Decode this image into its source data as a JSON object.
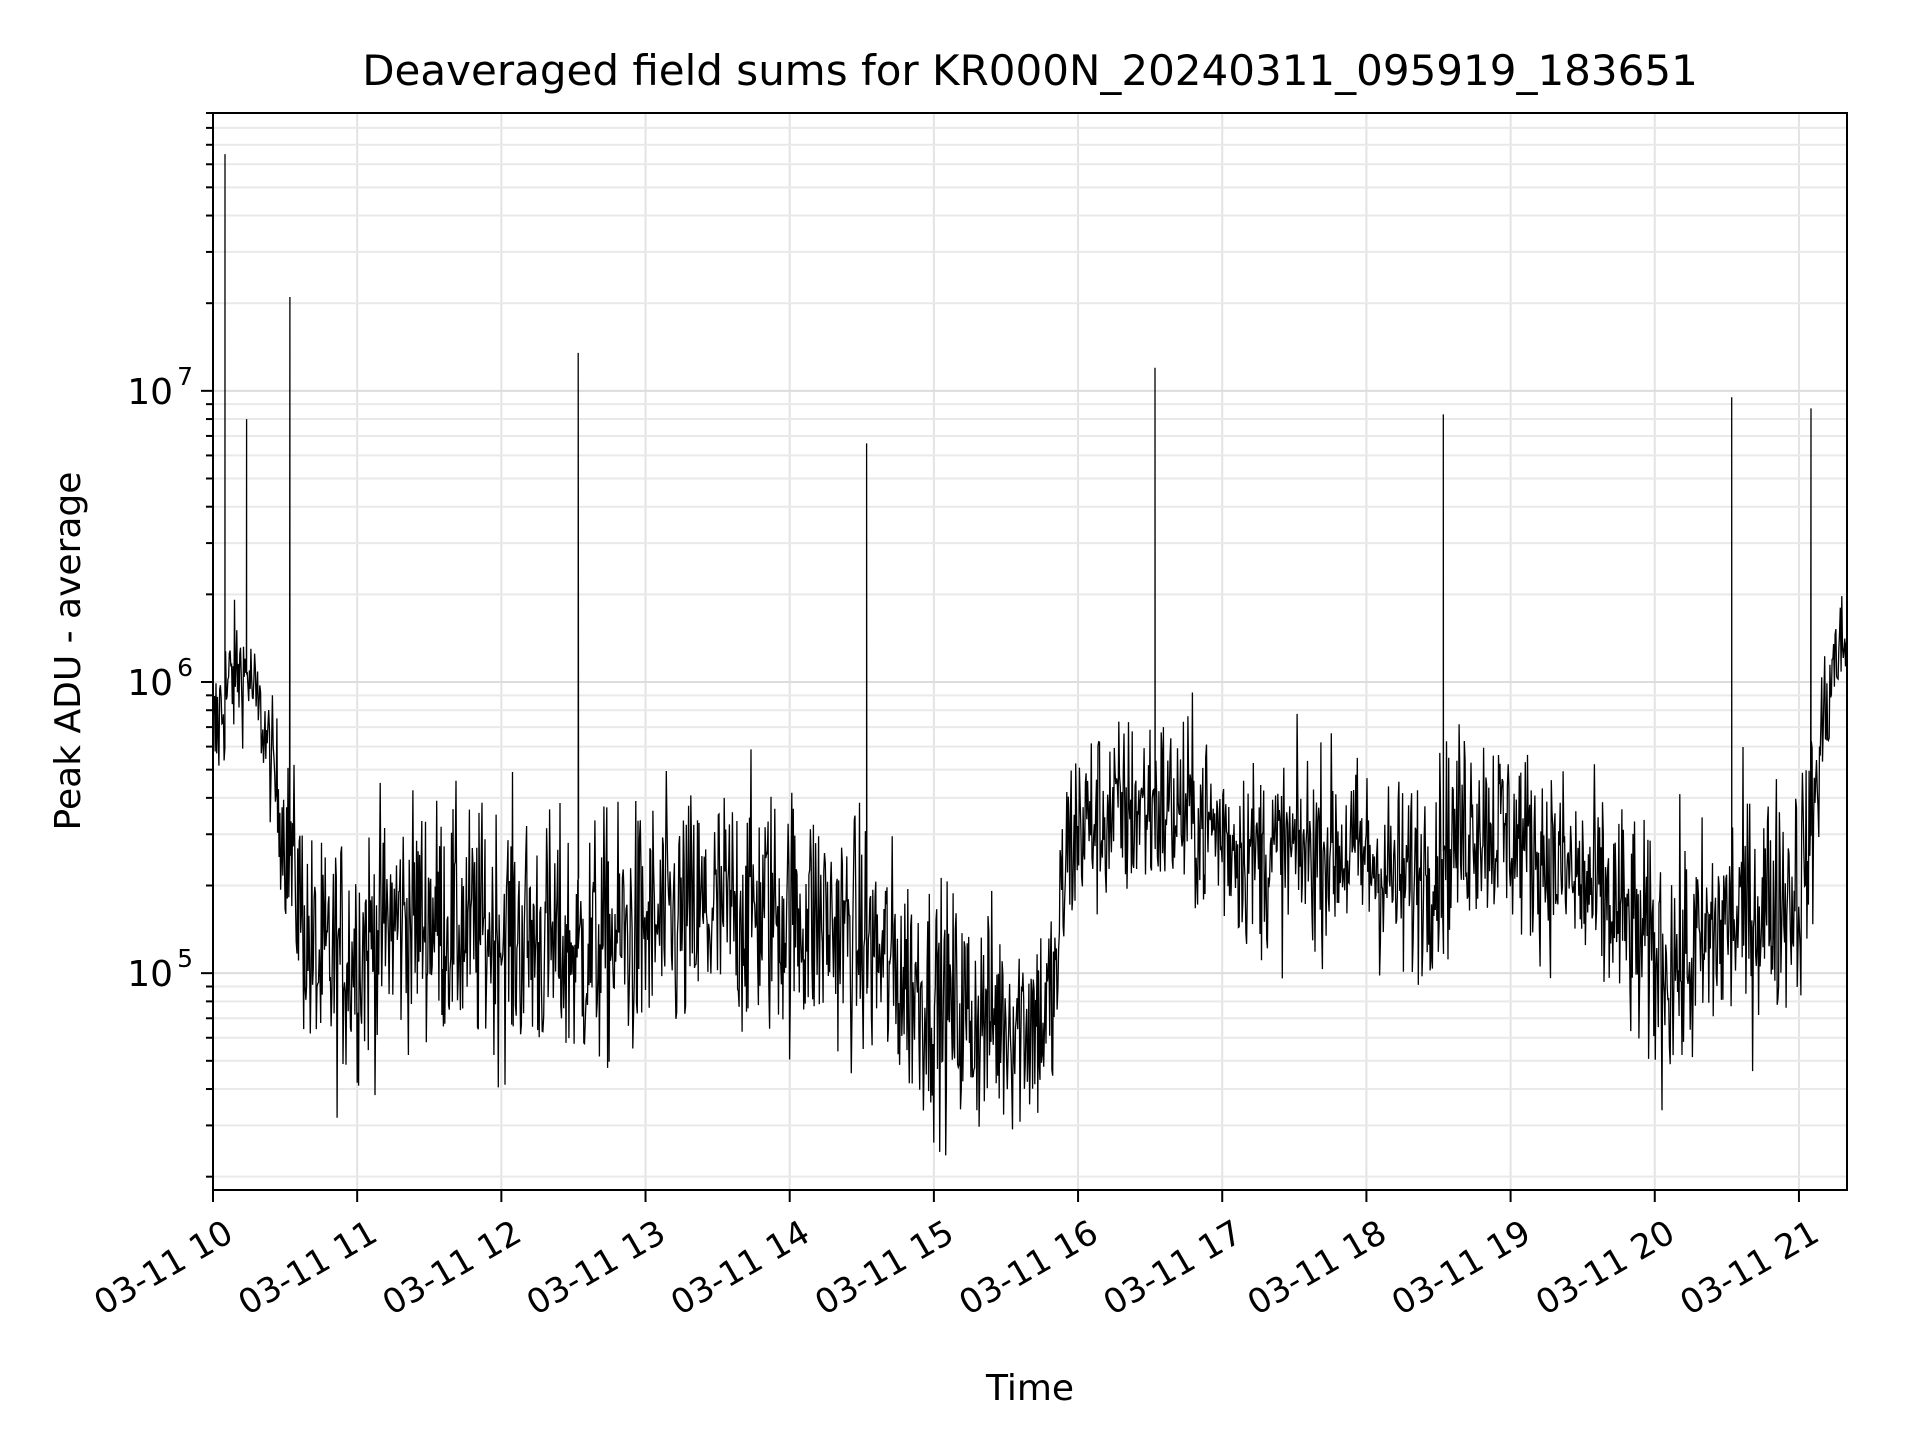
{
  "chart_data": {
    "type": "line",
    "title": "Deaveraged field sums for KR000N_20240311_095919_183651",
    "xlabel": "Time",
    "ylabel": "Peak ADU - average",
    "yscale": "log",
    "ylim": [
      18000,
      90000000
    ],
    "xlim": [
      "2024-03-11 10:00",
      "2024-03-11 21:20"
    ],
    "grid": true,
    "x_ticks": [
      "03-11 10",
      "03-11 11",
      "03-11 12",
      "03-11 13",
      "03-11 14",
      "03-11 15",
      "03-11 16",
      "03-11 17",
      "03-11 18",
      "03-11 19",
      "03-11 20",
      "03-11 21"
    ],
    "y_ticks": [
      {
        "value": 100000,
        "base": "10",
        "exp": "5"
      },
      {
        "value": 1000000,
        "base": "10",
        "exp": "6"
      },
      {
        "value": 10000000,
        "base": "10",
        "exp": "7"
      }
    ],
    "series": [
      {
        "color": "#000000",
        "x": [
          "2024-03-11 10:00",
          "2024-03-11 10:05",
          "2024-03-11 10:10",
          "2024-03-11 10:15",
          "2024-03-11 10:20",
          "2024-03-11 10:25",
          "2024-03-11 10:30",
          "2024-03-11 10:35",
          "2024-03-11 10:40",
          "2024-03-11 10:45",
          "2024-03-11 10:50",
          "2024-03-11 11:00",
          "2024-03-11 11:15",
          "2024-03-11 11:30",
          "2024-03-11 11:45",
          "2024-03-11 12:00",
          "2024-03-11 12:15",
          "2024-03-11 12:30",
          "2024-03-11 12:45",
          "2024-03-11 13:00",
          "2024-03-11 13:15",
          "2024-03-11 13:30",
          "2024-03-11 13:45",
          "2024-03-11 14:00",
          "2024-03-11 14:15",
          "2024-03-11 14:30",
          "2024-03-11 14:45",
          "2024-03-11 15:00",
          "2024-03-11 15:15",
          "2024-03-11 15:30",
          "2024-03-11 15:45",
          "2024-03-11 15:50",
          "2024-03-11 15:55",
          "2024-03-11 16:00",
          "2024-03-11 16:15",
          "2024-03-11 16:30",
          "2024-03-11 16:45",
          "2024-03-11 17:00",
          "2024-03-11 17:15",
          "2024-03-11 17:30",
          "2024-03-11 17:45",
          "2024-03-11 18:00",
          "2024-03-11 18:15",
          "2024-03-11 18:30",
          "2024-03-11 18:45",
          "2024-03-11 19:00",
          "2024-03-11 19:15",
          "2024-03-11 19:30",
          "2024-03-11 19:45",
          "2024-03-11 20:00",
          "2024-03-11 20:15",
          "2024-03-11 20:30",
          "2024-03-11 20:45",
          "2024-03-11 21:00",
          "2024-03-11 21:05",
          "2024-03-11 21:10",
          "2024-03-11 21:15",
          "2024-03-11 21:20"
        ],
        "center": [
          600000,
          900000,
          1100000,
          1050000,
          750000,
          500000,
          300000,
          200000,
          120000,
          100000,
          110000,
          120000,
          150000,
          160000,
          140000,
          140000,
          130000,
          120000,
          130000,
          140000,
          150000,
          160000,
          170000,
          160000,
          150000,
          130000,
          100000,
          80000,
          70000,
          70000,
          70000,
          80000,
          250000,
          320000,
          350000,
          380000,
          360000,
          300000,
          250000,
          260000,
          270000,
          250000,
          200000,
          250000,
          350000,
          300000,
          250000,
          200000,
          160000,
          110000,
          110000,
          150000,
          170000,
          200000,
          300000,
          700000,
          1200000,
          1400000
        ],
        "spread": [
          2.2,
          2.0,
          1.8,
          1.6,
          1.6,
          1.8,
          2.2,
          2.6,
          3.0,
          3.2,
          3.2,
          3.2,
          3.0,
          3.0,
          3.0,
          3.2,
          3.2,
          3.2,
          3.2,
          3.2,
          3.2,
          3.2,
          3.2,
          3.2,
          3.0,
          3.0,
          3.0,
          3.0,
          3.0,
          2.8,
          2.8,
          2.8,
          2.6,
          2.4,
          2.4,
          2.4,
          2.4,
          2.4,
          2.4,
          2.4,
          2.4,
          2.4,
          2.6,
          2.6,
          2.6,
          2.4,
          2.4,
          2.6,
          2.8,
          3.0,
          3.0,
          3.0,
          3.0,
          3.0,
          2.6,
          2.0,
          1.8,
          1.6
        ],
        "spikes": [
          {
            "x": "2024-03-11 10:05",
            "y": 65000000
          },
          {
            "x": "2024-03-11 10:14",
            "y": 8000000
          },
          {
            "x": "2024-03-11 10:32",
            "y": 21000000
          },
          {
            "x": "2024-03-11 12:32",
            "y": 13500000
          },
          {
            "x": "2024-03-11 14:32",
            "y": 6600000
          },
          {
            "x": "2024-03-11 16:32",
            "y": 12000000
          },
          {
            "x": "2024-03-11 18:32",
            "y": 8300000
          },
          {
            "x": "2024-03-11 20:32",
            "y": 9500000
          },
          {
            "x": "2024-03-11 21:05",
            "y": 8700000
          }
        ]
      }
    ]
  }
}
